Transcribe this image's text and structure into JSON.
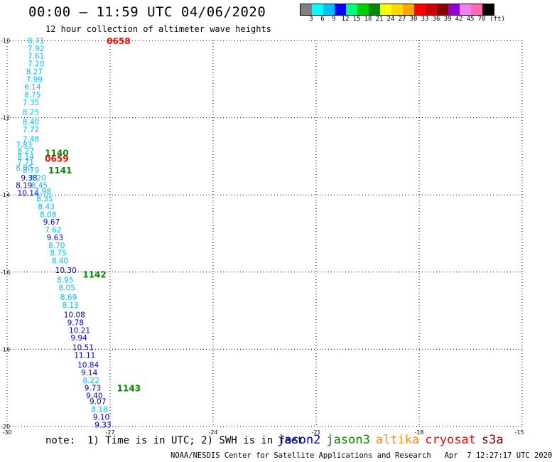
{
  "header": {
    "title": "00:00 — 11:59 UTC 04/06/2020",
    "subtitle": "12 hour collection of altimeter wave heights"
  },
  "scale": {
    "labels": [
      "3",
      "6",
      "9",
      "12",
      "15",
      "18",
      "21",
      "24",
      "27",
      "30",
      "33",
      "36",
      "39",
      "42",
      "45",
      "70"
    ],
    "unit": "(ft)",
    "colors": [
      "#808080",
      "#00ffff",
      "#00bfff",
      "#0000ff",
      "#00ff7f",
      "#00cd00",
      "#008b00",
      "#ffff00",
      "#ffd700",
      "#ffa500",
      "#ff0000",
      "#cd0000",
      "#8b0000",
      "#9400d3",
      "#ee82ee",
      "#ff69b4",
      "#000000"
    ]
  },
  "axes": {
    "lat_labels": [
      "-10",
      "-12",
      "-14",
      "-16",
      "-18",
      "-20"
    ],
    "lon_labels": [
      "-30",
      "-27",
      "-24",
      "-21",
      "-18",
      "-15"
    ]
  },
  "chart_data": {
    "type": "scatter",
    "xlabel": "",
    "ylabel": "",
    "x_range": [
      -30,
      -15
    ],
    "y_range": [
      -20,
      -10
    ],
    "grid": true,
    "passes": [
      {
        "satellite": "cryosat",
        "time_label": "0658",
        "lon": -27.1,
        "lat": -10.0
      },
      {
        "satellite": "jason3",
        "time_label": "1140",
        "lon": -28.9,
        "lat": -12.9
      },
      {
        "satellite": "cryosat",
        "time_label": "0659",
        "lon": -28.9,
        "lat": -13.05
      },
      {
        "satellite": "jason3",
        "time_label": "1141",
        "lon": -28.8,
        "lat": -13.35
      },
      {
        "satellite": "jason3",
        "time_label": "1142",
        "lon": -27.8,
        "lat": -16.05
      },
      {
        "satellite": "jason3",
        "time_label": "1143",
        "lon": -26.8,
        "lat": -19.0
      }
    ],
    "points": [
      {
        "value": "8.71",
        "lon": -29.4,
        "lat": -10.0,
        "color": "#00bfff"
      },
      {
        "value": "7.92",
        "lon": -29.4,
        "lat": -10.2,
        "color": "#00bfff"
      },
      {
        "value": "7.61",
        "lon": -29.4,
        "lat": -10.4,
        "color": "#00bfff"
      },
      {
        "value": "7.20",
        "lon": -29.4,
        "lat": -10.6,
        "color": "#00bfff"
      },
      {
        "value": "8.27",
        "lon": -29.45,
        "lat": -10.8,
        "color": "#00bfff"
      },
      {
        "value": "7.99",
        "lon": -29.45,
        "lat": -11.0,
        "color": "#00bfff"
      },
      {
        "value": "6.14",
        "lon": -29.5,
        "lat": -11.2,
        "color": "#00bfff"
      },
      {
        "value": "8.75",
        "lon": -29.5,
        "lat": -11.4,
        "color": "#00bfff"
      },
      {
        "value": "7.35",
        "lon": -29.55,
        "lat": -11.6,
        "color": "#00bfff"
      },
      {
        "value": "8.25",
        "lon": -29.55,
        "lat": -11.85,
        "color": "#00bfff"
      },
      {
        "value": "8.40",
        "lon": -29.55,
        "lat": -12.1,
        "color": "#00bfff"
      },
      {
        "value": "7.72",
        "lon": -29.55,
        "lat": -12.3,
        "color": "#00bfff"
      },
      {
        "value": "7.48",
        "lon": -29.55,
        "lat": -12.55,
        "color": "#00bfff"
      },
      {
        "value": "7.83",
        "lon": -29.75,
        "lat": -12.7,
        "color": "#00bfff"
      },
      {
        "value": "8.27",
        "lon": -29.7,
        "lat": -12.85,
        "color": "#00bfff"
      },
      {
        "value": "8.14",
        "lon": -29.7,
        "lat": -13.0,
        "color": "#00bfff"
      },
      {
        "value": "7.71",
        "lon": -29.7,
        "lat": -13.15,
        "color": "#00bfff"
      },
      {
        "value": "8.00",
        "lon": -29.75,
        "lat": -13.3,
        "color": "#00bfff"
      },
      {
        "value": "8.79",
        "lon": -29.55,
        "lat": -13.35,
        "color": "#00bfff"
      },
      {
        "value": "9.38",
        "lon": -29.6,
        "lat": -13.55,
        "color": "#0000cd"
      },
      {
        "value": "8.20",
        "lon": -29.35,
        "lat": -13.55,
        "color": "#00bfff"
      },
      {
        "value": "8.19",
        "lon": -29.75,
        "lat": -13.75,
        "color": "#0000cd"
      },
      {
        "value": "8.45",
        "lon": -29.3,
        "lat": -13.75,
        "color": "#00bfff"
      },
      {
        "value": "10.14",
        "lon": -29.7,
        "lat": -13.95,
        "color": "#0000cd"
      },
      {
        "value": "7.98",
        "lon": -29.2,
        "lat": -13.9,
        "color": "#00bfff"
      },
      {
        "value": "8.35",
        "lon": -29.15,
        "lat": -14.1,
        "color": "#00bfff"
      },
      {
        "value": "8.43",
        "lon": -29.1,
        "lat": -14.3,
        "color": "#00bfff"
      },
      {
        "value": "8.08",
        "lon": -29.05,
        "lat": -14.5,
        "color": "#00bfff"
      },
      {
        "value": "9.67",
        "lon": -28.95,
        "lat": -14.7,
        "color": "#0000cd"
      },
      {
        "value": "7.62",
        "lon": -28.9,
        "lat": -14.9,
        "color": "#00bfff"
      },
      {
        "value": "9.63",
        "lon": -28.85,
        "lat": -15.1,
        "color": "#0000cd"
      },
      {
        "value": "8.70",
        "lon": -28.8,
        "lat": -15.3,
        "color": "#00bfff"
      },
      {
        "value": "8.75",
        "lon": -28.75,
        "lat": -15.5,
        "color": "#00bfff"
      },
      {
        "value": "8.40",
        "lon": -28.7,
        "lat": -15.7,
        "color": "#00bfff"
      },
      {
        "value": "10.30",
        "lon": -28.6,
        "lat": -15.95,
        "color": "#0000cd"
      },
      {
        "value": "8.95",
        "lon": -28.55,
        "lat": -16.2,
        "color": "#00bfff"
      },
      {
        "value": "8.05",
        "lon": -28.5,
        "lat": -16.4,
        "color": "#00bfff"
      },
      {
        "value": "8.69",
        "lon": -28.45,
        "lat": -16.65,
        "color": "#00bfff"
      },
      {
        "value": "8.13",
        "lon": -28.4,
        "lat": -16.85,
        "color": "#00bfff"
      },
      {
        "value": "10.08",
        "lon": -28.35,
        "lat": -17.1,
        "color": "#0000cd"
      },
      {
        "value": "9.78",
        "lon": -28.25,
        "lat": -17.3,
        "color": "#0000cd"
      },
      {
        "value": "10.21",
        "lon": -28.2,
        "lat": -17.5,
        "color": "#0000cd"
      },
      {
        "value": "9.94",
        "lon": -28.15,
        "lat": -17.7,
        "color": "#0000cd"
      },
      {
        "value": "10.51",
        "lon": -28.1,
        "lat": -17.95,
        "color": "#0000cd"
      },
      {
        "value": "11.11",
        "lon": -28.05,
        "lat": -18.15,
        "color": "#0000cd"
      },
      {
        "value": "10.84",
        "lon": -27.95,
        "lat": -18.4,
        "color": "#0000cd"
      },
      {
        "value": "9.14",
        "lon": -27.85,
        "lat": -18.6,
        "color": "#0000cd"
      },
      {
        "value": "8.22",
        "lon": -27.8,
        "lat": -18.8,
        "color": "#00bfff"
      },
      {
        "value": "9.73",
        "lon": -27.75,
        "lat": -19.0,
        "color": "#0000cd"
      },
      {
        "value": "9.40",
        "lon": -27.7,
        "lat": -19.2,
        "color": "#0000cd"
      },
      {
        "value": "9.07",
        "lon": -27.6,
        "lat": -19.35,
        "color": "#0000cd"
      },
      {
        "value": "8.18",
        "lon": -27.55,
        "lat": -19.55,
        "color": "#00bfff"
      },
      {
        "value": "9.10",
        "lon": -27.5,
        "lat": -19.75,
        "color": "#0000cd"
      },
      {
        "value": "9.33",
        "lon": -27.45,
        "lat": -19.95,
        "color": "#0000cd"
      }
    ]
  },
  "footer": {
    "note": "note:  1) Time is in UTC; 2) SWH is in feet",
    "satellites": [
      {
        "name": "jason2",
        "color": "#0000cd"
      },
      {
        "name": "jason3",
        "color": "#008b00"
      },
      {
        "name": "altika",
        "color": "#ff8c00"
      },
      {
        "name": "cryosat",
        "color": "#ff0000"
      },
      {
        "name": "s3a",
        "color": "#8b0000"
      }
    ],
    "credit": "NOAA/NESDIS Center for Satellite Applications and Research   Apr  7 12:27:17 UTC 2020"
  },
  "pass_colors": {
    "jason3": "#008b00",
    "cryosat": "#ff0000"
  }
}
